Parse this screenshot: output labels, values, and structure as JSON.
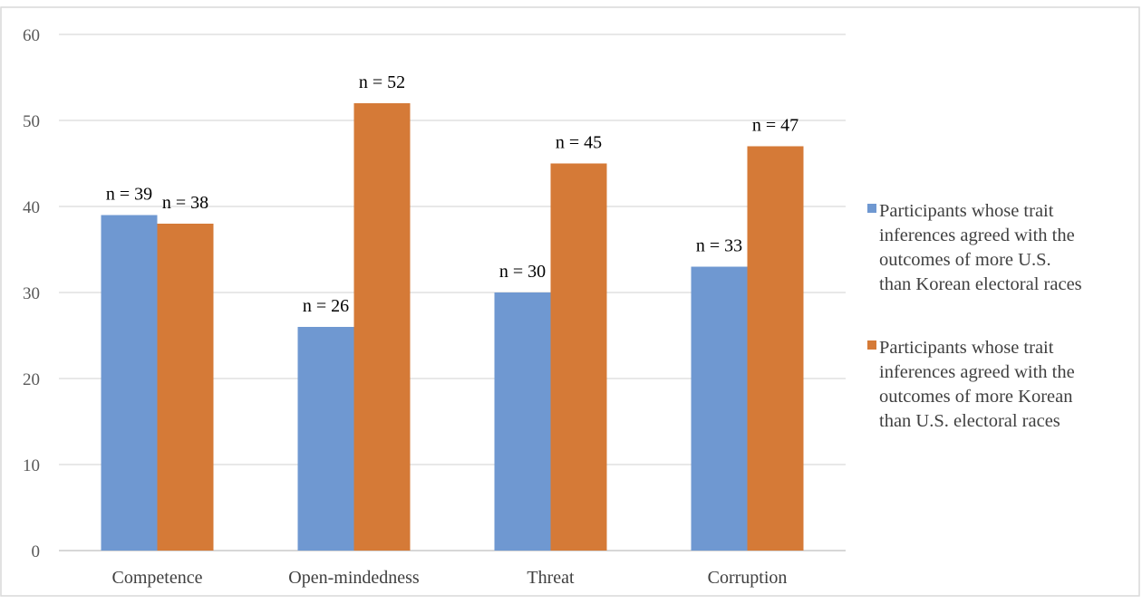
{
  "chart_data": {
    "type": "bar",
    "categories": [
      "Competence",
      "Open-mindedness",
      "Threat",
      "Corruption"
    ],
    "series": [
      {
        "name": "Participants whose trait inferences agreed with the outcomes of more U.S. than Korean electoral races",
        "legend_lines": [
          "Participants whose trait",
          "inferences agreed with the",
          "outcomes of more U.S.",
          "than Korean electoral races"
        ],
        "values": [
          39,
          26,
          30,
          33
        ],
        "data_labels": [
          "n = 39",
          "n = 26",
          "n = 30",
          "n = 33"
        ],
        "color": "#6f98d1"
      },
      {
        "name": "Participants whose trait inferences agreed with the outcomes of more Korean than U.S. electoral races",
        "legend_lines": [
          "Participants whose trait",
          "inferences agreed with the",
          "outcomes of more Korean",
          "than U.S. electoral races"
        ],
        "values": [
          38,
          52,
          45,
          47
        ],
        "data_labels": [
          "n = 38",
          "n = 52",
          "n = 45",
          "n = 47"
        ],
        "color": "#d57a37"
      }
    ],
    "ylim": [
      0,
      60
    ],
    "yticks": [
      0,
      10,
      20,
      30,
      40,
      50,
      60
    ],
    "grid": true,
    "legend": "right",
    "title": "",
    "xlabel": "",
    "ylabel": ""
  }
}
